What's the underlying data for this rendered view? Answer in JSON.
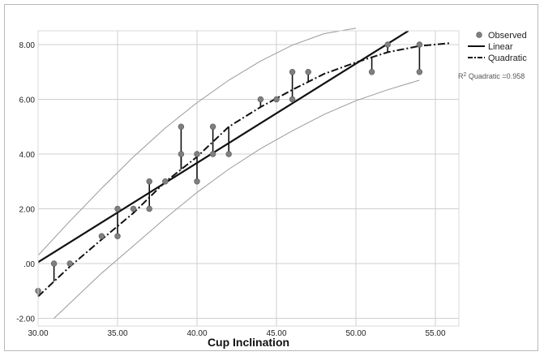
{
  "chart_data": {
    "type": "scatter",
    "xlabel": "Cup Inclination",
    "ylabel": "",
    "xlim": [
      30,
      56.5
    ],
    "ylim": [
      -2,
      8.6
    ],
    "x_ticks": [
      30,
      35,
      40,
      45,
      50,
      55
    ],
    "x_tick_labels": [
      "30.00",
      "35.00",
      "40.00",
      "45.00",
      "50.00",
      "55.00"
    ],
    "y_ticks": [
      -2,
      0,
      2,
      4,
      6,
      8
    ],
    "y_tick_labels": [
      "-2.00",
      ".00",
      "2.00",
      "4.00",
      "6.00",
      "8.00"
    ],
    "grid": true,
    "legend_position": "top-right",
    "series": [
      {
        "name": "Observed",
        "kind": "points",
        "color": "#7f7f7f",
        "points": [
          [
            30,
            -1
          ],
          [
            31,
            0
          ],
          [
            32,
            0
          ],
          [
            34,
            1
          ],
          [
            35,
            1
          ],
          [
            35,
            2
          ],
          [
            36,
            2
          ],
          [
            37,
            2
          ],
          [
            37,
            3
          ],
          [
            38,
            3
          ],
          [
            39,
            4
          ],
          [
            39,
            5
          ],
          [
            40,
            3
          ],
          [
            40,
            4
          ],
          [
            41,
            4
          ],
          [
            41,
            5
          ],
          [
            42,
            4
          ],
          [
            44,
            6
          ],
          [
            45,
            6
          ],
          [
            46,
            6
          ],
          [
            46,
            7
          ],
          [
            47,
            7
          ],
          [
            51,
            7
          ],
          [
            52,
            8
          ],
          [
            54,
            7
          ],
          [
            54,
            8
          ]
        ]
      },
      {
        "name": "Linear",
        "kind": "line",
        "color": "#111111",
        "style": "solid",
        "x": [
          30,
          53.3
        ],
        "y": [
          0.05,
          8.5
        ]
      },
      {
        "name": "Quadratic",
        "kind": "line",
        "color": "#111111",
        "style": "dash-dot",
        "x": [
          30,
          32,
          34,
          36,
          38,
          40,
          42,
          44,
          46,
          48,
          50,
          52,
          54,
          56
        ],
        "y": [
          -1.2,
          -0.11,
          0.88,
          1.85,
          2.98,
          3.9,
          5.0,
          5.72,
          6.35,
          6.93,
          7.35,
          7.72,
          7.95,
          8.06
        ]
      },
      {
        "name": "upper band",
        "kind": "line",
        "color": "#9a9a9a",
        "style": "thin",
        "x": [
          30,
          32,
          34,
          36,
          38,
          40,
          42,
          44,
          46,
          48,
          50
        ],
        "y": [
          0.3,
          1.55,
          2.75,
          3.9,
          4.95,
          5.88,
          6.7,
          7.4,
          7.98,
          8.4,
          8.6
        ]
      },
      {
        "name": "lower band",
        "kind": "line",
        "color": "#9a9a9a",
        "style": "thin",
        "x": [
          31,
          34,
          36,
          38,
          40,
          42,
          44,
          46,
          48,
          50,
          52,
          54
        ],
        "y": [
          -2,
          -0.35,
          0.65,
          1.65,
          2.6,
          3.45,
          4.2,
          4.85,
          5.45,
          5.95,
          6.35,
          6.7
        ]
      }
    ],
    "residuals": [
      [
        30,
        -1
      ],
      [
        31,
        0
      ],
      [
        32,
        0
      ],
      [
        34,
        1
      ],
      [
        35,
        1
      ],
      [
        35,
        2
      ],
      [
        36,
        2
      ],
      [
        37,
        2
      ],
      [
        37,
        3
      ],
      [
        38,
        3
      ],
      [
        39,
        4
      ],
      [
        39,
        5
      ],
      [
        40,
        3
      ],
      [
        40,
        4
      ],
      [
        41,
        4
      ],
      [
        41,
        5
      ],
      [
        42,
        4
      ],
      [
        44,
        6
      ],
      [
        45,
        6
      ],
      [
        46,
        6
      ],
      [
        46,
        7
      ],
      [
        47,
        7
      ],
      [
        51,
        7
      ],
      [
        52,
        8
      ],
      [
        54,
        7
      ],
      [
        54,
        8
      ]
    ],
    "legend": [
      {
        "label": "Observed",
        "marker": "point"
      },
      {
        "label": "Linear",
        "marker": "solid"
      },
      {
        "label": "Quadratic",
        "marker": "dash-dot"
      }
    ],
    "annotation": {
      "prefix": "R",
      "sup": "2",
      "text": " Quadratic =0.958"
    }
  }
}
